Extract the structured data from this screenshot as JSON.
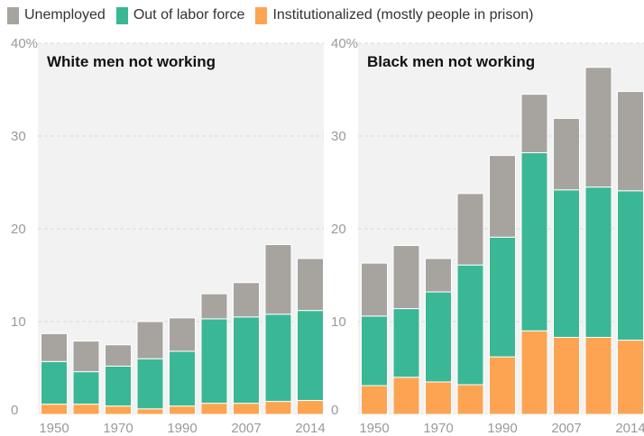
{
  "legend": [
    {
      "label": "Unemployed",
      "color": "#a7a39f"
    },
    {
      "label": "Out of labor force",
      "color": "#3ab795"
    },
    {
      "label": "Institutionalized (mostly people in prison)",
      "color": "#fca451"
    }
  ],
  "chart_data": [
    {
      "type": "bar",
      "stacked": true,
      "title": "White men not working",
      "x_tick_labels": [
        "1950",
        "1970",
        "1990",
        "2007",
        "2014"
      ],
      "y_tick_labels": [
        "40%",
        "30",
        "20",
        "10",
        "0"
      ],
      "ylim": [
        0,
        40
      ],
      "grid": true,
      "series": [
        {
          "name": "Institutionalized (mostly people in prison)",
          "values": [
            1.1,
            1.1,
            0.9,
            0.6,
            0.9,
            1.2,
            1.2,
            1.4,
            1.5
          ]
        },
        {
          "name": "Out of labor force",
          "values": [
            4.6,
            3.5,
            4.3,
            5.4,
            5.9,
            9.1,
            9.3,
            9.4,
            9.7
          ]
        },
        {
          "name": "Unemployed",
          "values": [
            3.0,
            3.3,
            2.3,
            4.0,
            3.6,
            2.7,
            3.7,
            7.5,
            5.6
          ]
        }
      ]
    },
    {
      "type": "bar",
      "stacked": true,
      "title": "Black men not working",
      "x_tick_labels": [
        "1950",
        "1970",
        "1990",
        "2007",
        "2014"
      ],
      "y_tick_labels": [
        "40%",
        "30",
        "20",
        "10",
        "0"
      ],
      "ylim": [
        0,
        40
      ],
      "grid": true,
      "series": [
        {
          "name": "Institutionalized (mostly people in prison)",
          "values": [
            3.1,
            4.0,
            3.5,
            3.2,
            6.2,
            9.0,
            8.3,
            8.3,
            8.0
          ]
        },
        {
          "name": "Out of labor force",
          "values": [
            7.5,
            7.4,
            9.7,
            12.9,
            12.9,
            19.2,
            15.9,
            16.2,
            16.1
          ]
        },
        {
          "name": "Unemployed",
          "values": [
            5.7,
            6.8,
            3.6,
            7.7,
            8.8,
            6.3,
            7.7,
            12.9,
            10.7
          ]
        }
      ]
    }
  ]
}
